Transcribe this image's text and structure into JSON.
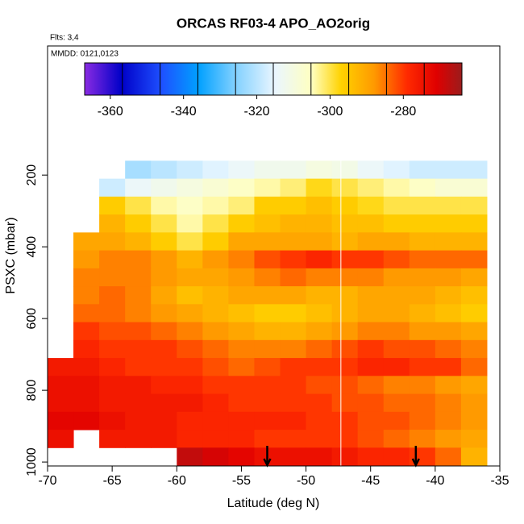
{
  "chart_data": {
    "type": "heatmap",
    "title": "ORCAS RF03-4 APO_AO2orig",
    "subtitle": "Flts: 3,4",
    "annotation": "MMDD: 0121,0123",
    "x_label": "Latitude (deg N)",
    "y_label": "PSXC (mbar)",
    "xlim": [
      -70,
      -35
    ],
    "xticks": [
      -70,
      -65,
      -60,
      -55,
      -50,
      -45,
      -40,
      -35
    ],
    "ylim": [
      1011,
      -160
    ],
    "yticks": [
      200,
      400,
      600,
      800,
      1000
    ],
    "x_bins": [
      -70,
      -68,
      -66,
      -64,
      -62,
      -60,
      -58,
      -56,
      -54,
      -52,
      -50,
      -48,
      -46,
      -44,
      -42,
      -40,
      -38,
      -36
    ],
    "y_bins": [
      160,
      210,
      260,
      310,
      360,
      410,
      460,
      510,
      560,
      610,
      660,
      710,
      760,
      810,
      860,
      910,
      960,
      1010
    ],
    "values": [
      [
        null,
        null,
        null,
        -322,
        -320,
        -318,
        -316,
        -314,
        -312,
        -312,
        -310,
        -311,
        -314,
        -316,
        -318,
        -318,
        -318
      ],
      [
        null,
        null,
        -318,
        -314,
        -312,
        -310,
        -308,
        -306,
        -304,
        -302,
        -298,
        -300,
        -302,
        -304,
        -306,
        -308,
        -308
      ],
      [
        null,
        null,
        -296,
        -300,
        -304,
        -306,
        -304,
        -302,
        -296,
        -296,
        -294,
        -296,
        -298,
        -300,
        -300,
        -300,
        -300
      ],
      [
        null,
        null,
        -292,
        -296,
        -300,
        -304,
        -300,
        -296,
        -294,
        -292,
        -292,
        -294,
        -294,
        -296,
        -296,
        -296,
        -296
      ],
      [
        null,
        -290,
        -290,
        -292,
        -296,
        -300,
        -296,
        -290,
        -290,
        -290,
        -290,
        -292,
        -290,
        -290,
        -292,
        -292,
        -292
      ],
      [
        null,
        -288,
        -286,
        -286,
        -288,
        -292,
        -288,
        -286,
        -282,
        -280,
        -278,
        -280,
        -280,
        -282,
        -284,
        -284,
        -284
      ],
      [
        null,
        -286,
        -286,
        -286,
        -288,
        -290,
        -290,
        -288,
        -286,
        -284,
        -286,
        -286,
        -286,
        -288,
        -288,
        -288,
        -290
      ],
      [
        null,
        -286,
        -284,
        -286,
        -290,
        -294,
        -292,
        -290,
        -290,
        -290,
        -292,
        -292,
        -290,
        -290,
        -290,
        -292,
        -294
      ],
      [
        null,
        -284,
        -284,
        -286,
        -288,
        -290,
        -292,
        -294,
        -296,
        -296,
        -294,
        -292,
        -290,
        -290,
        -292,
        -294,
        -296
      ],
      [
        null,
        -280,
        -282,
        -282,
        -284,
        -286,
        -288,
        -290,
        -292,
        -292,
        -290,
        -288,
        -286,
        -286,
        -288,
        -288,
        -290
      ],
      [
        null,
        -278,
        -280,
        -280,
        -280,
        -282,
        -284,
        -286,
        -286,
        -286,
        -284,
        -282,
        -280,
        -282,
        -282,
        -284,
        -286
      ],
      [
        -276,
        -276,
        -278,
        -280,
        -280,
        -280,
        -282,
        -284,
        -282,
        -280,
        -280,
        -280,
        -278,
        -278,
        -280,
        -280,
        -284
      ],
      [
        -274,
        -274,
        -276,
        -276,
        -278,
        -278,
        -280,
        -280,
        -280,
        -280,
        -282,
        -282,
        -284,
        -286,
        -286,
        -288,
        -290
      ],
      [
        -274,
        -274,
        -276,
        -276,
        -276,
        -276,
        -278,
        -280,
        -280,
        -280,
        -280,
        -282,
        -282,
        -284,
        -284,
        -286,
        -288
      ],
      [
        -272,
        -272,
        -274,
        -276,
        -276,
        -278,
        -278,
        -278,
        -278,
        -278,
        -280,
        -280,
        -282,
        -282,
        -284,
        -286,
        -288
      ],
      [
        -274,
        null,
        -276,
        -276,
        -276,
        -278,
        -278,
        -278,
        -280,
        -280,
        -280,
        -280,
        -282,
        -284,
        -286,
        -288,
        -290
      ],
      [
        null,
        null,
        null,
        null,
        null,
        -268,
        -270,
        -272,
        -274,
        -274,
        -274,
        -276,
        -278,
        -278,
        -280,
        -284,
        -292
      ]
    ],
    "colorbar": {
      "lim": [
        -367,
        -264
      ],
      "ticks": [
        -360,
        -340,
        -320,
        -300,
        -280
      ],
      "stops": [
        [
          -367,
          "#8a2be2"
        ],
        [
          -357,
          "#0000c8"
        ],
        [
          -346,
          "#1e50ff"
        ],
        [
          -336,
          "#00a0ff"
        ],
        [
          -326,
          "#80d0ff"
        ],
        [
          -315,
          "#eaf6ff"
        ],
        [
          -305,
          "#ffffc0"
        ],
        [
          -297,
          "#ffd200"
        ],
        [
          -288,
          "#ff9a00"
        ],
        [
          -279,
          "#ff2a00"
        ],
        [
          -271,
          "#e00000"
        ],
        [
          -264,
          "#9b1c1c"
        ]
      ]
    },
    "vline_x": -47.3,
    "arrows_x": [
      -53,
      -41.5
    ]
  }
}
